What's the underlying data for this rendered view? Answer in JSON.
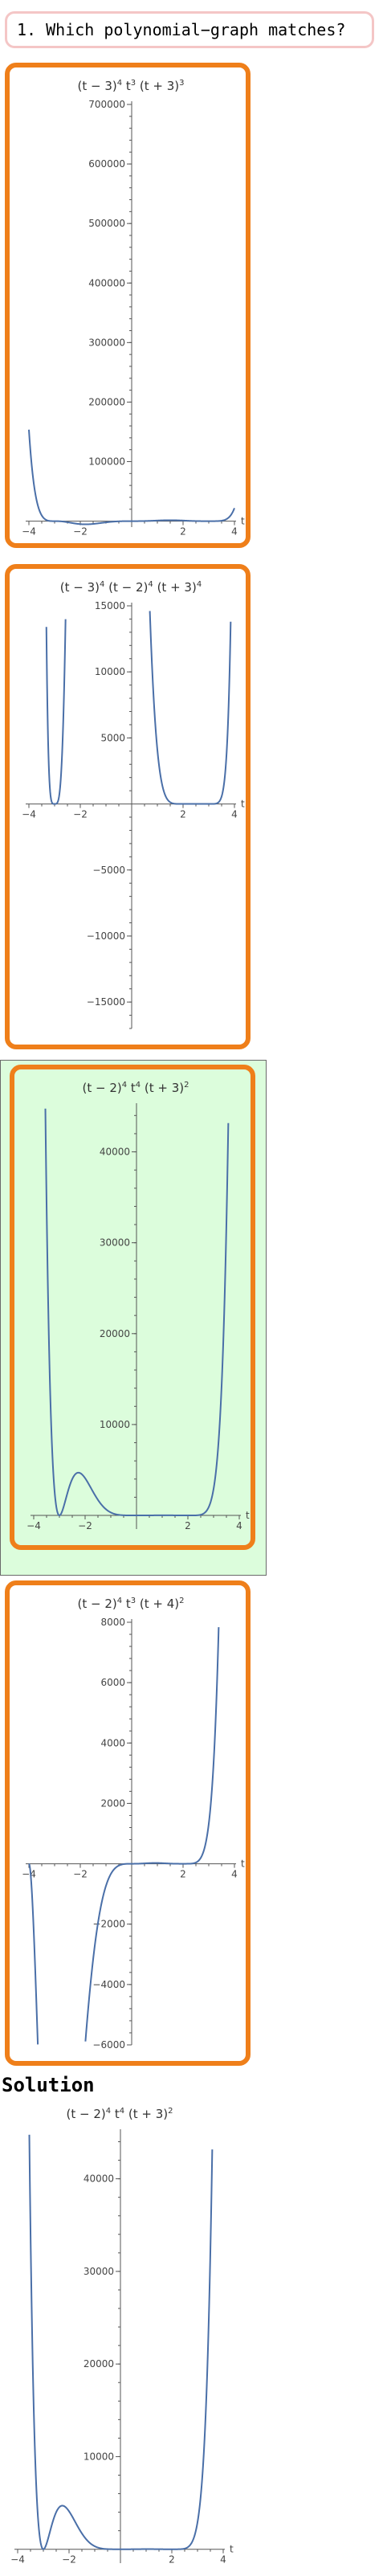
{
  "question": {
    "text": "1. Which polynomial−graph matches?"
  },
  "solution": {
    "label": "Solution"
  },
  "chart_data": [
    {
      "type": "line",
      "id": "choice-1",
      "title_parts": [
        "(t − 3)",
        "4",
        " t",
        "3",
        " (t + 3)",
        "3"
      ],
      "xlim": [
        -4,
        4
      ],
      "ylim": [
        -10000,
        700000
      ],
      "xticks": [
        -4,
        -2,
        2,
        4
      ],
      "xtick_labels": [
        "−4",
        "−2",
        "2",
        "4"
      ],
      "yticks": [
        100000,
        200000,
        300000,
        400000,
        500000,
        600000,
        700000
      ],
      "ytick_labels": [
        "100000",
        "200000",
        "300000",
        "400000",
        "500000",
        "600000",
        "700000"
      ],
      "xlabel": "t",
      "exps": {
        "sub": [
          3,
          4
        ],
        "t": 3,
        "add": [
          3,
          3
        ]
      }
    },
    {
      "type": "line",
      "id": "choice-2",
      "title_parts": [
        "(t − 3)",
        "4",
        " (t − 2)",
        "4",
        " (t + 3)",
        "4"
      ],
      "xlim": [
        -4,
        4
      ],
      "ylim": [
        -17000,
        15000
      ],
      "xticks": [
        -4,
        -2,
        2,
        4
      ],
      "xtick_labels": [
        "−4",
        "−2",
        "2",
        "4"
      ],
      "yticks": [
        -15000,
        -10000,
        -5000,
        5000,
        10000,
        15000
      ],
      "ytick_labels": [
        "−15000",
        "−10000",
        "−5000",
        "5000",
        "10000",
        "15000"
      ],
      "xlabel": "t",
      "exps": {
        "sub": [
          3,
          4
        ],
        "sub2": [
          2,
          4
        ],
        "add": [
          3,
          4
        ]
      }
    },
    {
      "type": "line",
      "id": "choice-3",
      "title_parts": [
        "(t − 2)",
        "4",
        " t",
        "4",
        " (t + 3)",
        "2"
      ],
      "xlim": [
        -4,
        4
      ],
      "ylim": [
        -1500,
        45000
      ],
      "xticks": [
        -4,
        -2,
        2,
        4
      ],
      "xtick_labels": [
        "−4",
        "−2",
        "2",
        "4"
      ],
      "yticks": [
        10000,
        20000,
        30000,
        40000
      ],
      "ytick_labels": [
        "10000",
        "20000",
        "30000",
        "40000"
      ],
      "xlabel": "t",
      "exps": {
        "sub": [
          2,
          4
        ],
        "t": 4,
        "add": [
          3,
          2
        ]
      }
    },
    {
      "type": "line",
      "id": "choice-4",
      "title_parts": [
        "(t − 2)",
        "4",
        " t",
        "3",
        " (t + 4)",
        "2"
      ],
      "xlim": [
        -4,
        4
      ],
      "ylim": [
        -6000,
        8000
      ],
      "xticks": [
        -4,
        -2,
        2,
        4
      ],
      "xtick_labels": [
        "−4",
        "−2",
        "2",
        "4"
      ],
      "yticks": [
        -6000,
        -4000,
        -2000,
        2000,
        4000,
        6000,
        8000
      ],
      "ytick_labels": [
        "−6000",
        "−4000",
        "−2000",
        "2000",
        "4000",
        "6000",
        "8000"
      ],
      "xlabel": "t",
      "exps": {
        "sub": [
          2,
          4
        ],
        "t": 3,
        "add": [
          4,
          2
        ]
      }
    },
    {
      "type": "line",
      "id": "solution",
      "title_parts": [
        "(t − 2)",
        "4",
        " t",
        "4",
        " (t + 3)",
        "2"
      ],
      "xlim": [
        -4,
        4
      ],
      "ylim": [
        -1500,
        45000
      ],
      "xticks": [
        -4,
        -2,
        2,
        4
      ],
      "xtick_labels": [
        "−4",
        "−2",
        "2",
        "4"
      ],
      "yticks": [
        10000,
        20000,
        30000,
        40000
      ],
      "ytick_labels": [
        "10000",
        "20000",
        "30000",
        "40000"
      ],
      "xlabel": "t",
      "exps": {
        "sub": [
          2,
          4
        ],
        "t": 4,
        "add": [
          3,
          2
        ]
      }
    }
  ]
}
